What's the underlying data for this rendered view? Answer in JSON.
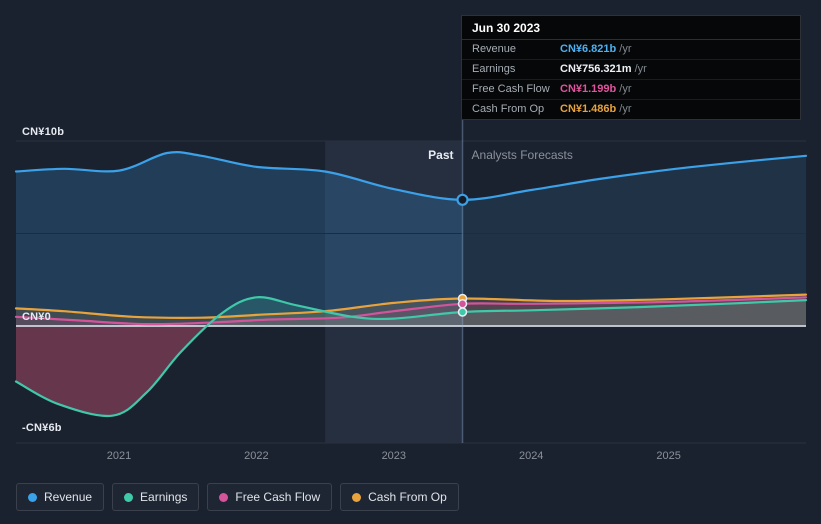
{
  "colors": {
    "background": "#1b222f",
    "revenue": "#3ba1e8",
    "earnings": "#3fc9a9",
    "free_cash_flow": "#d4549c",
    "cash_from_op": "#e8a33d",
    "negative_fill": "#b84d6e",
    "zero_line": "#ccd2da",
    "gridline": "#2a3240"
  },
  "tooltip": {
    "title": "Jun 30 2023",
    "rows": [
      {
        "label": "Revenue",
        "value": "CN¥6.821b",
        "suffix": "/yr",
        "color": "#4db1f2"
      },
      {
        "label": "Earnings",
        "value": "CN¥756.321m",
        "suffix": "/yr",
        "color": "#eef2f6"
      },
      {
        "label": "Free Cash Flow",
        "value": "CN¥1.199b",
        "suffix": "/yr",
        "color": "#e0559e"
      },
      {
        "label": "Cash From Op",
        "value": "CN¥1.486b",
        "suffix": "/yr",
        "color": "#e8a33d"
      }
    ]
  },
  "labels": {
    "past": "Past",
    "forecasts": "Analysts Forecasts"
  },
  "legend": {
    "items": [
      {
        "label": "Revenue",
        "color": "#3ba1e8"
      },
      {
        "label": "Earnings",
        "color": "#3fc9a9"
      },
      {
        "label": "Free Cash Flow",
        "color": "#d4549c"
      },
      {
        "label": "Cash From Op",
        "color": "#e8a33d"
      }
    ]
  },
  "chart_data": {
    "type": "line",
    "title": "Past performance and analysts forecasts (CN¥ billions per year)",
    "x_axis": {
      "min": 2020.25,
      "max": 2026.0,
      "ticks": [
        "2021",
        "2022",
        "2023",
        "2024",
        "2025"
      ],
      "tick_values": [
        2021,
        2022,
        2023,
        2024,
        2025
      ]
    },
    "y_axis": {
      "unit": "CN¥ billions /yr",
      "labels": [
        {
          "text": "CN¥10b",
          "value": 10
        },
        {
          "text": "CN¥0",
          "value": 0
        },
        {
          "text": "-CN¥6b",
          "value": -6
        }
      ],
      "min": -6.4,
      "max": 10
    },
    "divider_x": 2023.5,
    "highlight_band": [
      2022.5,
      2023.5
    ],
    "series": [
      {
        "name": "Revenue",
        "color": "#3ba1e8",
        "x": [
          2020.25,
          2020.6,
          2021.0,
          2021.35,
          2021.6,
          2022.0,
          2022.5,
          2023.0,
          2023.5,
          2024.0,
          2024.5,
          2025.0,
          2025.5,
          2026.0
        ],
        "values": [
          8.35,
          8.5,
          8.4,
          9.35,
          9.2,
          8.6,
          8.35,
          7.4,
          6.821,
          7.35,
          7.95,
          8.45,
          8.85,
          9.2
        ]
      },
      {
        "name": "Earnings",
        "color": "#3fc9a9",
        "x": [
          2020.25,
          2020.55,
          2020.95,
          2021.2,
          2021.45,
          2021.75,
          2022.0,
          2022.3,
          2022.7,
          2023.0,
          2023.5,
          2024.0,
          2024.7,
          2025.4,
          2026.0
        ],
        "values": [
          -3.0,
          -4.2,
          -4.85,
          -3.6,
          -1.4,
          0.7,
          1.55,
          1.1,
          0.5,
          0.4,
          0.756,
          0.85,
          1.0,
          1.2,
          1.4
        ]
      },
      {
        "name": "Free Cash Flow",
        "color": "#d4549c",
        "x": [
          2020.25,
          2020.7,
          2021.2,
          2021.7,
          2022.1,
          2022.6,
          2023.0,
          2023.5,
          2024.0,
          2025.0,
          2026.0
        ],
        "values": [
          0.5,
          0.3,
          0.1,
          0.2,
          0.35,
          0.45,
          0.8,
          1.199,
          1.2,
          1.3,
          1.55
        ]
      },
      {
        "name": "Cash From Op",
        "color": "#e8a33d",
        "x": [
          2020.25,
          2020.6,
          2021.1,
          2021.6,
          2022.0,
          2022.5,
          2023.0,
          2023.5,
          2024.2,
          2025.0,
          2026.0
        ],
        "values": [
          0.95,
          0.8,
          0.5,
          0.45,
          0.6,
          0.8,
          1.25,
          1.486,
          1.35,
          1.45,
          1.7
        ]
      }
    ],
    "markers": [
      {
        "series": "Revenue",
        "x": 2023.5,
        "value": 6.821
      },
      {
        "series": "Cash From Op",
        "x": 2023.5,
        "value": 1.486
      },
      {
        "series": "Free Cash Flow",
        "x": 2023.5,
        "value": 1.199
      },
      {
        "series": "Earnings",
        "x": 2023.5,
        "value": 0.756
      }
    ]
  }
}
